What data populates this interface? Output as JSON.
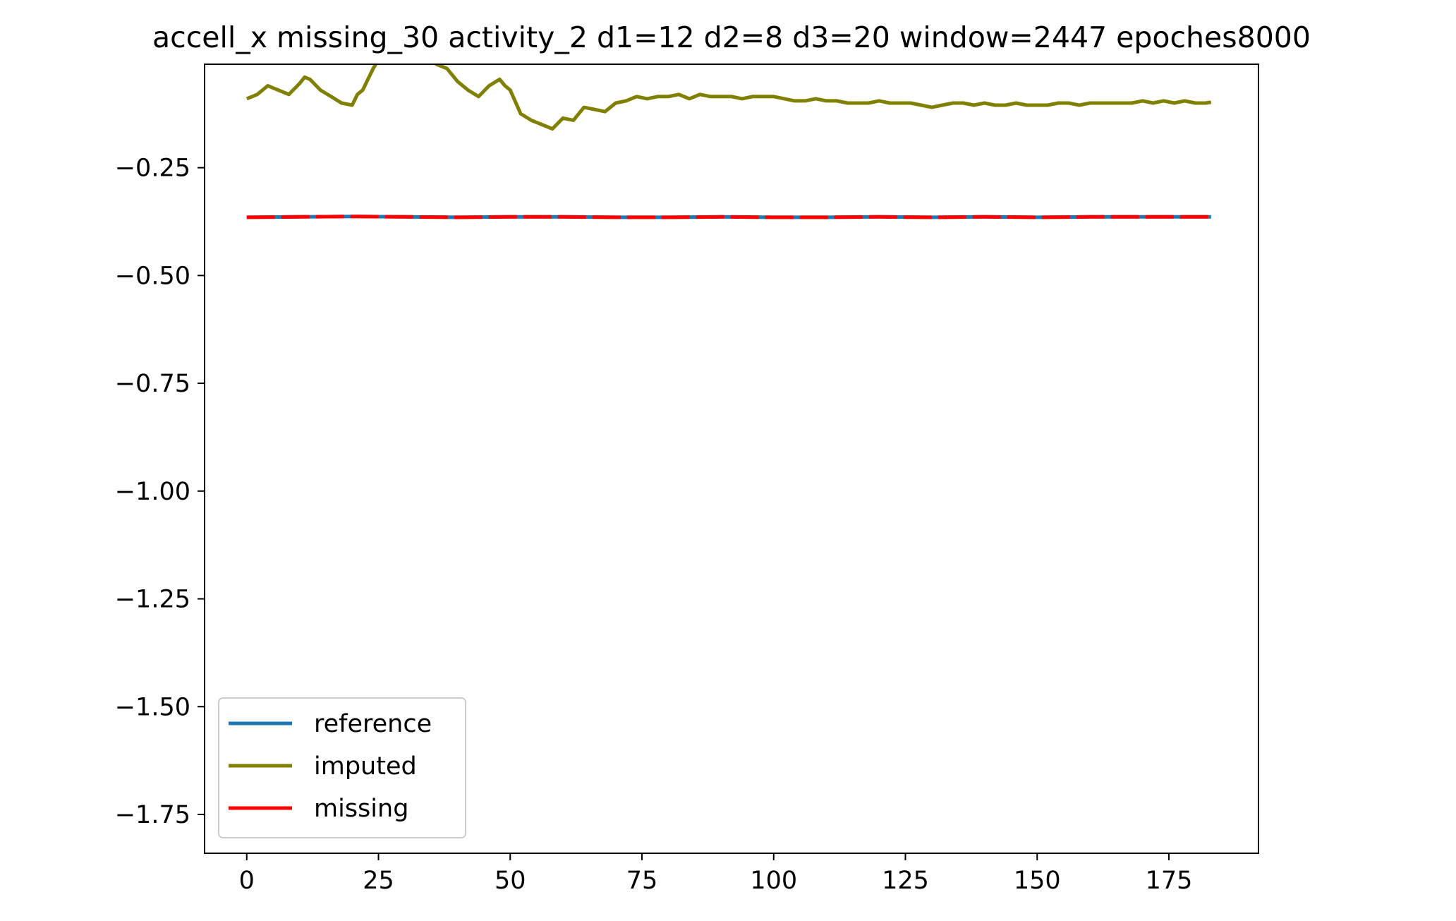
{
  "chart_data": {
    "type": "line",
    "title": "accell_x missing_30 activity_2 d1=12 d2=8 d3=20 window=2447 epoches8000",
    "xlabel": "",
    "ylabel": "",
    "xlim": [
      -8,
      192
    ],
    "ylim": [
      -1.84,
      -0.01
    ],
    "x_ticks": [
      0,
      25,
      50,
      75,
      100,
      125,
      150,
      175
    ],
    "x_tick_labels": [
      "0",
      "25",
      "50",
      "75",
      "100",
      "125",
      "150",
      "175"
    ],
    "y_ticks": [
      -0.25,
      -0.5,
      -0.75,
      -1.0,
      -1.25,
      -1.5,
      -1.75
    ],
    "y_tick_labels": [
      "−0.25",
      "−0.50",
      "−0.75",
      "−1.00",
      "−1.25",
      "−1.50",
      "−1.75"
    ],
    "grid": false,
    "legend": {
      "position": "lower-left"
    },
    "series": [
      {
        "name": "reference",
        "color": "#1f77b4",
        "style": "solid",
        "x": [
          0,
          10,
          20,
          30,
          40,
          50,
          60,
          70,
          80,
          90,
          100,
          110,
          120,
          130,
          140,
          150,
          160,
          170,
          180,
          183
        ],
        "y": [
          -0.365,
          -0.364,
          -0.363,
          -0.364,
          -0.365,
          -0.364,
          -0.364,
          -0.365,
          -0.365,
          -0.364,
          -0.365,
          -0.365,
          -0.364,
          -0.365,
          -0.364,
          -0.365,
          -0.364,
          -0.364,
          -0.364,
          -0.364
        ]
      },
      {
        "name": "imputed",
        "color": "#808000",
        "style": "solid",
        "x": [
          0,
          2,
          4,
          6,
          8,
          10,
          11,
          12,
          14,
          16,
          18,
          20,
          21,
          22,
          24,
          26,
          28,
          30,
          32,
          34,
          36,
          38,
          40,
          42,
          44,
          46,
          48,
          49,
          50,
          52,
          54,
          56,
          58,
          60,
          62,
          64,
          66,
          68,
          70,
          72,
          74,
          76,
          78,
          80,
          82,
          84,
          86,
          88,
          90,
          92,
          94,
          96,
          98,
          100,
          102,
          104,
          106,
          108,
          110,
          112,
          114,
          116,
          118,
          120,
          122,
          124,
          126,
          128,
          130,
          132,
          134,
          136,
          138,
          140,
          142,
          144,
          146,
          148,
          150,
          152,
          154,
          156,
          158,
          160,
          162,
          164,
          166,
          168,
          170,
          172,
          174,
          176,
          178,
          180,
          182,
          183
        ],
        "y": [
          -0.09,
          -0.08,
          -0.06,
          -0.07,
          -0.08,
          -0.055,
          -0.04,
          -0.045,
          -0.07,
          -0.085,
          -0.1,
          -0.105,
          -0.08,
          -0.07,
          -0.02,
          0.02,
          0.04,
          0.03,
          0.02,
          0.01,
          -0.01,
          -0.02,
          -0.05,
          -0.07,
          -0.085,
          -0.06,
          -0.045,
          -0.06,
          -0.07,
          -0.125,
          -0.14,
          -0.15,
          -0.16,
          -0.135,
          -0.14,
          -0.11,
          -0.115,
          -0.12,
          -0.1,
          -0.095,
          -0.085,
          -0.09,
          -0.085,
          -0.085,
          -0.08,
          -0.09,
          -0.08,
          -0.085,
          -0.085,
          -0.085,
          -0.09,
          -0.085,
          -0.085,
          -0.085,
          -0.09,
          -0.095,
          -0.095,
          -0.09,
          -0.095,
          -0.095,
          -0.1,
          -0.1,
          -0.1,
          -0.095,
          -0.1,
          -0.1,
          -0.1,
          -0.105,
          -0.11,
          -0.105,
          -0.1,
          -0.1,
          -0.105,
          -0.1,
          -0.105,
          -0.105,
          -0.1,
          -0.105,
          -0.105,
          -0.105,
          -0.1,
          -0.1,
          -0.105,
          -0.1,
          -0.1,
          -0.1,
          -0.1,
          -0.1,
          -0.095,
          -0.1,
          -0.095,
          -0.1,
          -0.095,
          -0.1,
          -0.1,
          -0.098
        ]
      },
      {
        "name": "missing",
        "color": "#ff0000",
        "style": "dashed",
        "x": [
          0,
          10,
          20,
          30,
          40,
          50,
          60,
          70,
          80,
          90,
          100,
          110,
          120,
          130,
          140,
          150,
          160,
          170,
          180,
          183
        ],
        "y": [
          -0.365,
          -0.364,
          -0.363,
          -0.364,
          -0.365,
          -0.364,
          -0.364,
          -0.365,
          -0.365,
          -0.364,
          -0.365,
          -0.365,
          -0.364,
          -0.365,
          -0.364,
          -0.365,
          -0.364,
          -0.364,
          -0.364,
          -0.364
        ]
      }
    ]
  }
}
